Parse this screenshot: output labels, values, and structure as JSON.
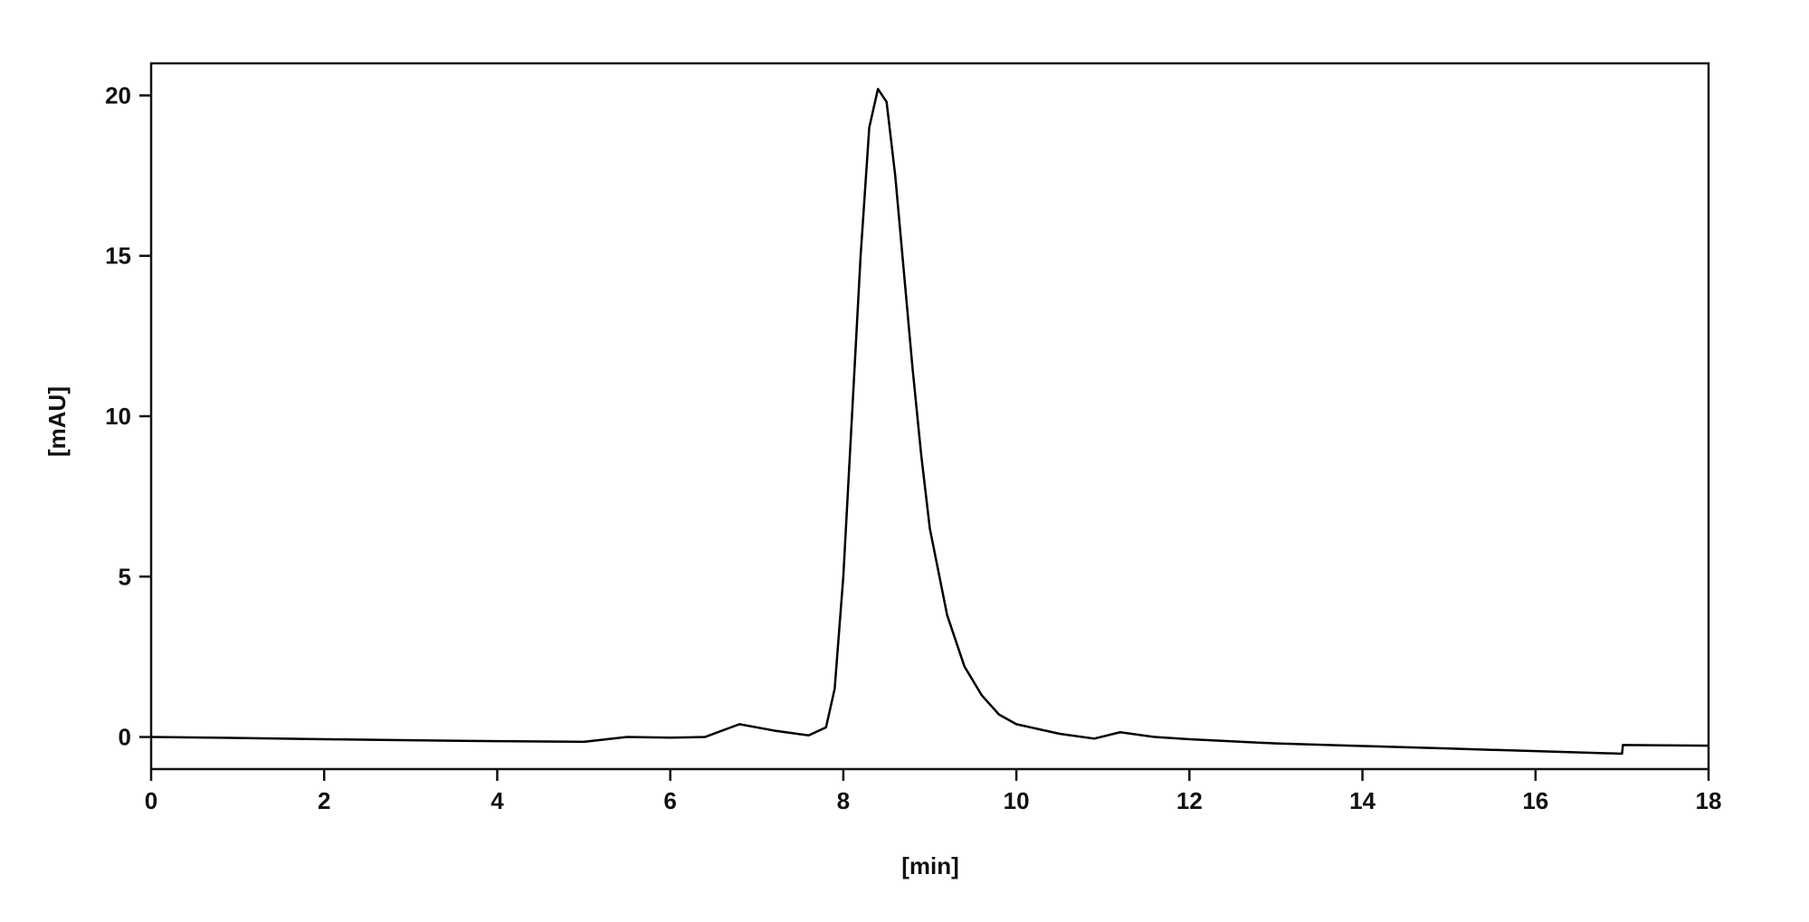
{
  "chart_data": {
    "type": "line",
    "x_label": "[min]",
    "y_label": "[mAU]",
    "xlim": [
      0,
      18
    ],
    "xticks": [
      0,
      2,
      4,
      6,
      8,
      10,
      12,
      14,
      16,
      18
    ],
    "ylim": [
      -1,
      21
    ],
    "yticks": [
      0,
      5,
      10,
      15,
      20
    ],
    "grid": false,
    "series": [
      {
        "color": "#000000",
        "x": [
          0,
          1,
          2,
          3,
          4,
          5,
          5.5,
          6,
          6.4,
          6.8,
          7.2,
          7.6,
          7.8,
          7.9,
          8.0,
          8.1,
          8.2,
          8.3,
          8.4,
          8.5,
          8.6,
          8.7,
          8.8,
          8.9,
          9.0,
          9.2,
          9.4,
          9.6,
          9.8,
          10,
          10.5,
          10.9,
          11.2,
          11.6,
          12,
          13,
          14,
          15,
          16,
          17,
          17.01,
          18
        ],
        "values": [
          0,
          -0.03,
          -0.07,
          -0.1,
          -0.13,
          -0.15,
          0,
          -0.02,
          0,
          0.4,
          0.2,
          0.05,
          0.3,
          1.5,
          5,
          10,
          15,
          19,
          20.2,
          19.8,
          17.5,
          14.5,
          11.5,
          8.8,
          6.5,
          3.8,
          2.2,
          1.3,
          0.7,
          0.4,
          0.1,
          -0.05,
          0.15,
          0,
          -0.07,
          -0.2,
          -0.28,
          -0.36,
          -0.44,
          -0.52,
          -0.25,
          -0.27
        ]
      }
    ]
  }
}
